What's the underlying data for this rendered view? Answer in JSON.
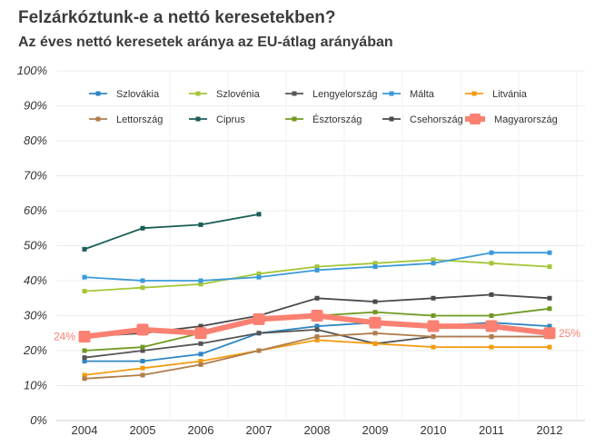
{
  "title": "Felzárkóztunk-e a nettó keresetekben?",
  "subtitle": "Az éves nettó keresetek aránya az EU-átlag arányában",
  "chart_data": {
    "type": "line",
    "x": [
      "2004",
      "2005",
      "2006",
      "2007",
      "2008",
      "2009",
      "2010",
      "2011",
      "2012"
    ],
    "ylim": [
      0,
      100
    ],
    "yticks": [
      "0%",
      "10%",
      "20%",
      "30%",
      "40%",
      "50%",
      "60%",
      "70%",
      "80%",
      "90%",
      "100%"
    ],
    "grid": true,
    "legend_position": "top",
    "series": [
      {
        "name": "Szlovákia",
        "color": "#2e86c1",
        "values": [
          17,
          17,
          19,
          25,
          27,
          28,
          27,
          28,
          27
        ]
      },
      {
        "name": "Szlovénia",
        "color": "#a5c639",
        "values": [
          37,
          38,
          39,
          42,
          44,
          45,
          46,
          45,
          44
        ]
      },
      {
        "name": "Lengyelország",
        "color": "#555555",
        "values": [
          18,
          20,
          22,
          25,
          26,
          22,
          24,
          24,
          24
        ]
      },
      {
        "name": "Málta",
        "color": "#3a9ad9",
        "values": [
          41,
          40,
          40,
          41,
          43,
          44,
          45,
          48,
          48
        ]
      },
      {
        "name": "Litvánia",
        "color": "#f39c12",
        "values": [
          13,
          15,
          17,
          20,
          23,
          22,
          21,
          21,
          21
        ]
      },
      {
        "name": "Lettország",
        "color": "#b07d4a",
        "values": [
          12,
          13,
          16,
          20,
          24,
          25,
          24,
          24,
          24
        ]
      },
      {
        "name": "Ciprus",
        "color": "#1b5e57",
        "values": [
          49,
          55,
          56,
          59,
          null,
          null,
          null,
          null,
          null
        ]
      },
      {
        "name": "Észtország",
        "color": "#6f9a1f",
        "values": [
          20,
          21,
          25,
          29,
          30,
          31,
          30,
          30,
          32
        ]
      },
      {
        "name": "Csehország",
        "color": "#4a4a4a",
        "values": [
          24,
          25,
          27,
          30,
          35,
          34,
          35,
          36,
          35
        ]
      },
      {
        "name": "Magyarország",
        "color": "#fa8072",
        "values": [
          24,
          26,
          25,
          29,
          30,
          28,
          27,
          27,
          25
        ],
        "highlight": true
      }
    ],
    "annotations": {
      "start_label": "24%",
      "end_label": "25%"
    }
  }
}
